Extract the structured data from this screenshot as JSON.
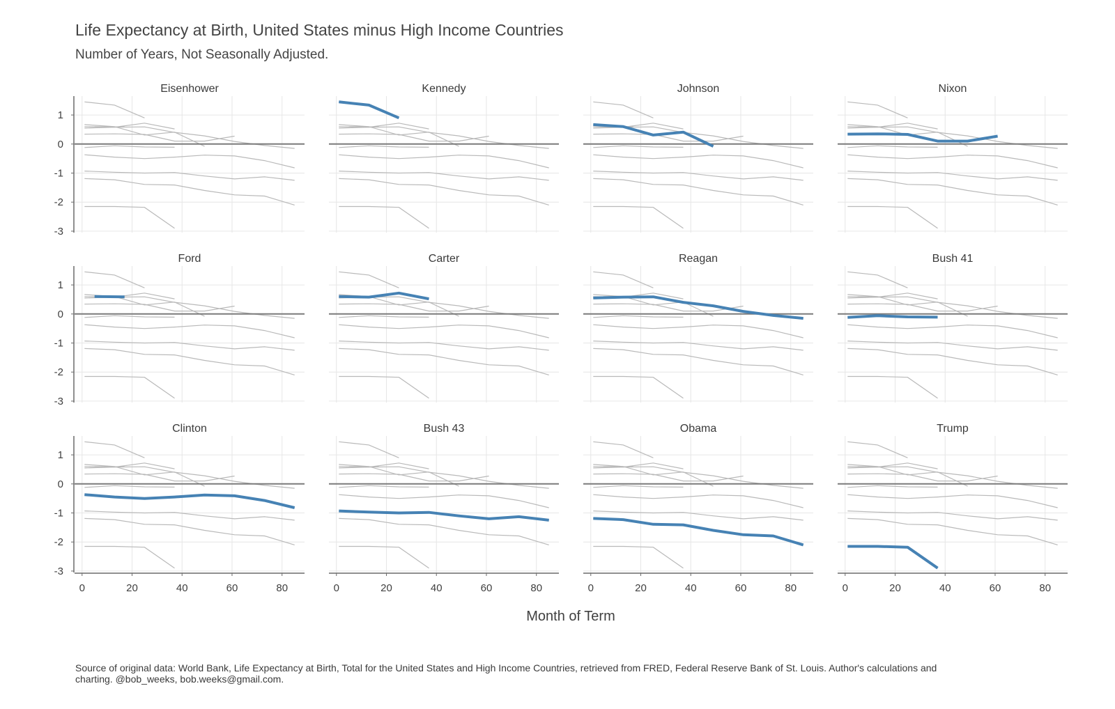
{
  "chart_data": {
    "type": "line",
    "title": "Life Expectancy at Birth, United States minus High Income Countries",
    "subtitle": "Number of Years, Not Seasonally Adjusted.",
    "xlabel": "Month of Term",
    "ylabel": "",
    "xlim": [
      -3,
      89
    ],
    "ylim": [
      -3.05,
      1.65
    ],
    "x_ticks": [
      0,
      20,
      40,
      60,
      80
    ],
    "y_ticks": [
      1,
      0,
      -1,
      -2,
      -3
    ],
    "grid": true,
    "legend": "none",
    "highlight_color": "#4682b4",
    "background_color": "#b9b9b9",
    "facets": [
      "Eisenhower",
      "Kennedy",
      "Johnson",
      "Nixon",
      "Ford",
      "Carter",
      "Reagan",
      "Bush 41",
      "Clinton",
      "Bush 43",
      "Obama",
      "Trump"
    ],
    "series": [
      {
        "name": "Eisenhower",
        "points": []
      },
      {
        "name": "Kennedy",
        "points": [
          [
            1,
            1.45
          ],
          [
            13,
            1.34
          ],
          [
            25,
            0.9
          ]
        ]
      },
      {
        "name": "Johnson",
        "points": [
          [
            1,
            0.67
          ],
          [
            13,
            0.6
          ],
          [
            25,
            0.31
          ],
          [
            37,
            0.41
          ],
          [
            49,
            -0.08
          ]
        ]
      },
      {
        "name": "Nixon",
        "points": [
          [
            1,
            0.34
          ],
          [
            13,
            0.35
          ],
          [
            25,
            0.33
          ],
          [
            37,
            0.1
          ],
          [
            49,
            0.1
          ],
          [
            61,
            0.27
          ]
        ]
      },
      {
        "name": "Ford",
        "points": [
          [
            5,
            0.6
          ],
          [
            17,
            0.59
          ]
        ]
      },
      {
        "name": "Carter",
        "points": [
          [
            1,
            0.6
          ],
          [
            13,
            0.58
          ],
          [
            25,
            0.72
          ],
          [
            37,
            0.52
          ]
        ]
      },
      {
        "name": "Reagan",
        "points": [
          [
            1,
            0.55
          ],
          [
            13,
            0.58
          ],
          [
            25,
            0.59
          ],
          [
            37,
            0.4
          ],
          [
            49,
            0.28
          ],
          [
            61,
            0.09
          ],
          [
            73,
            -0.05
          ],
          [
            85,
            -0.15
          ]
        ]
      },
      {
        "name": "Bush 41",
        "points": [
          [
            1,
            -0.12
          ],
          [
            13,
            -0.06
          ],
          [
            25,
            -0.1
          ],
          [
            37,
            -0.11
          ]
        ]
      },
      {
        "name": "Clinton",
        "points": [
          [
            1,
            -0.37
          ],
          [
            13,
            -0.45
          ],
          [
            25,
            -0.5
          ],
          [
            37,
            -0.45
          ],
          [
            49,
            -0.38
          ],
          [
            61,
            -0.41
          ],
          [
            73,
            -0.57
          ],
          [
            85,
            -0.82
          ]
        ]
      },
      {
        "name": "Bush 43",
        "points": [
          [
            1,
            -0.93
          ],
          [
            13,
            -0.97
          ],
          [
            25,
            -1.0
          ],
          [
            37,
            -0.98
          ],
          [
            49,
            -1.1
          ],
          [
            61,
            -1.2
          ],
          [
            73,
            -1.13
          ],
          [
            85,
            -1.25
          ]
        ]
      },
      {
        "name": "Obama",
        "points": [
          [
            1,
            -1.19
          ],
          [
            13,
            -1.23
          ],
          [
            25,
            -1.39
          ],
          [
            37,
            -1.41
          ],
          [
            49,
            -1.6
          ],
          [
            61,
            -1.75
          ],
          [
            73,
            -1.79
          ],
          [
            85,
            -2.1
          ]
        ]
      },
      {
        "name": "Trump",
        "points": [
          [
            1,
            -2.15
          ],
          [
            13,
            -2.15
          ],
          [
            25,
            -2.18
          ],
          [
            37,
            -2.9
          ]
        ]
      }
    ]
  },
  "source_note": "Source of original data: World Bank, Life Expectancy at Birth, Total for the United States and High Income Countries, retrieved from FRED, Federal Reserve Bank of St. Louis. Author's calculations and charting. @bob_weeks, bob.weeks@gmail.com."
}
